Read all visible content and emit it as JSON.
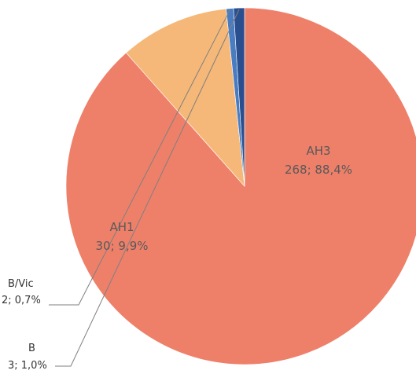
{
  "chart_data": {
    "type": "pie",
    "slices": [
      {
        "name": "AH3",
        "value": 268,
        "percent_label": "88,4%",
        "label": "268; 88,4%",
        "color": "#ee806a"
      },
      {
        "name": "AH1",
        "value": 30,
        "percent_label": "9,9%",
        "label": "30;  9,9%",
        "color": "#f5b878"
      },
      {
        "name": "B/Vic",
        "value": 2,
        "percent_label": "0,7%",
        "label": "2; 0,7%",
        "color": "#4a7cc2"
      },
      {
        "name": "B",
        "value": 3,
        "percent_label": "1,0%",
        "label": "3; 1,0%",
        "color": "#2a4f8f"
      }
    ],
    "start_angle_deg": -90,
    "direction": "clockwise"
  }
}
